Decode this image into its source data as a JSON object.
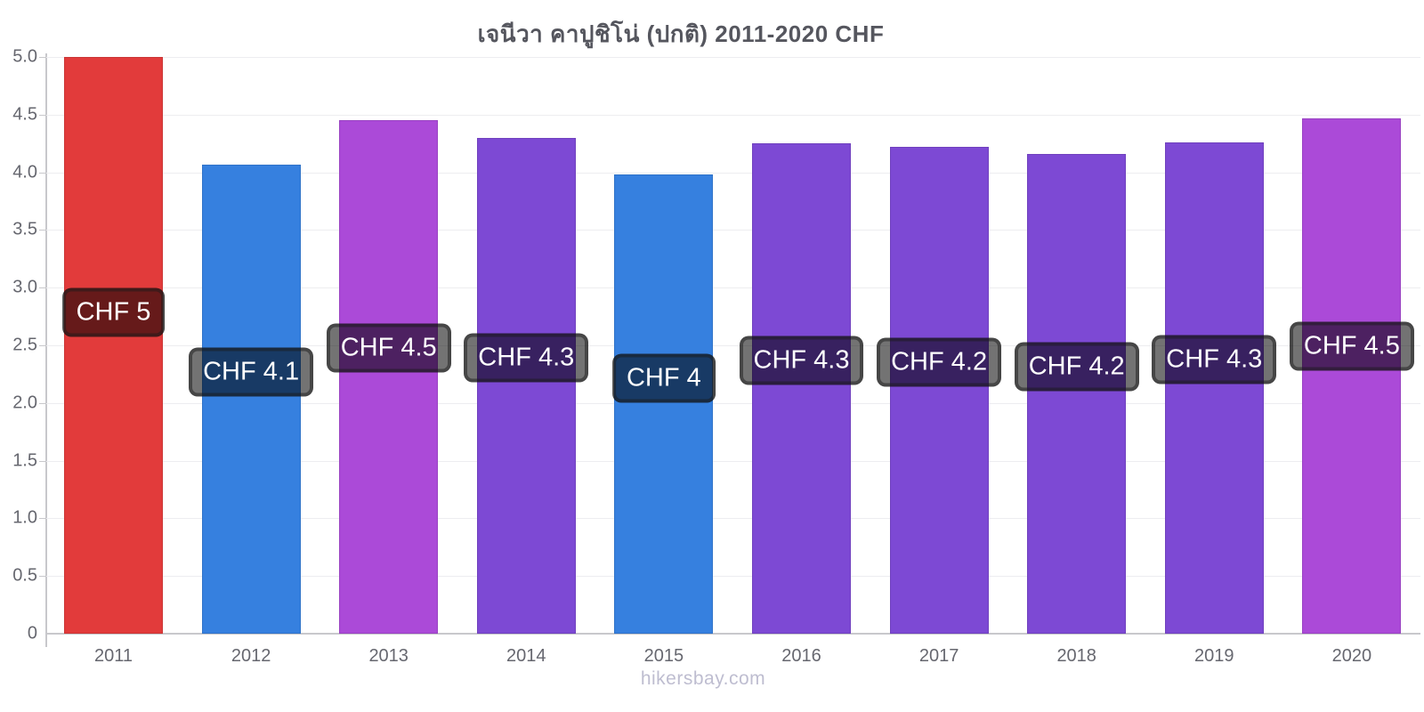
{
  "title": "เจนีวา คาปูชิโน่ (ปกติ) 2011-2020 CHF",
  "watermark": "hikersbay.com",
  "chart_data": {
    "type": "bar",
    "title": "เจนีวา คาปูชิโน่ (ปกติ) 2011-2020 CHF",
    "currency": "CHF",
    "categories": [
      "2011",
      "2012",
      "2013",
      "2014",
      "2015",
      "2016",
      "2017",
      "2018",
      "2019",
      "2020"
    ],
    "values": [
      5.0,
      4.07,
      4.45,
      4.3,
      3.98,
      4.25,
      4.22,
      4.16,
      4.26,
      4.47
    ],
    "bar_labels": [
      "CHF 5",
      "CHF 4.1",
      "CHF 4.5",
      "CHF 4.3",
      "CHF 4",
      "CHF 4.3",
      "CHF 4.2",
      "CHF 4.2",
      "CHF 4.3",
      "CHF 4.5"
    ],
    "bar_colors": [
      "#e23b3b",
      "#3680df",
      "#ab4ad8",
      "#7d49d4",
      "#3680df",
      "#7d49d4",
      "#7d49d4",
      "#7d49d4",
      "#7d49d4",
      "#ab4ad8"
    ],
    "xlabel": "",
    "ylabel": "",
    "ylim": [
      0,
      5
    ],
    "ytick_labels": [
      "0",
      "0.5",
      "1.0",
      "1.5",
      "2.0",
      "2.5",
      "3.0",
      "3.5",
      "4.0",
      "4.5",
      "5.0"
    ],
    "grid": true,
    "legend": false,
    "label_box_style": {
      "background": "rgba(0,0,0,0.55)",
      "border": "rgba(25,25,25,0.5)",
      "text_color": "#ffffff"
    },
    "axis_color": "#c8c8cc",
    "tick_text_color": "#66676f",
    "title_color": "#55565e",
    "watermark_color": "#bebdd0"
  }
}
